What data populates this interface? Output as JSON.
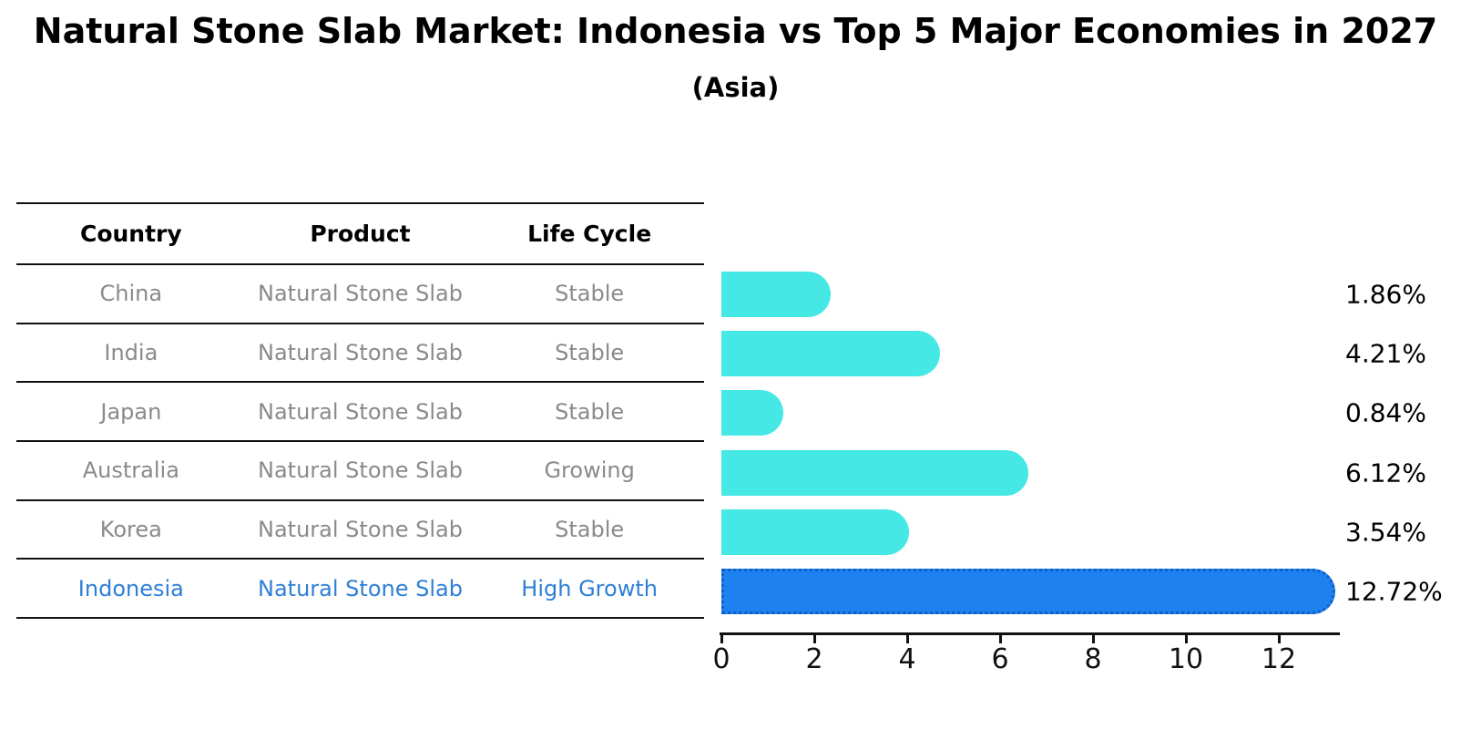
{
  "title": "Natural Stone Slab Market: Indonesia vs Top 5 Major Economies in 2027",
  "subtitle": "(Asia)",
  "table": {
    "headers": [
      "Country",
      "Product",
      "Life Cycle"
    ],
    "rows": [
      {
        "country": "China",
        "product": "Natural Stone Slab",
        "life_cycle": "Stable",
        "highlight": false
      },
      {
        "country": "India",
        "product": "Natural Stone Slab",
        "life_cycle": "Stable",
        "highlight": false
      },
      {
        "country": "Japan",
        "product": "Natural Stone Slab",
        "life_cycle": "Stable",
        "highlight": false
      },
      {
        "country": "Australia",
        "product": "Natural Stone Slab",
        "life_cycle": "Growing",
        "highlight": false
      },
      {
        "country": "Korea",
        "product": "Natural Stone Slab",
        "life_cycle": "Stable",
        "highlight": false
      },
      {
        "country": "Indonesia",
        "product": "Natural Stone Slab",
        "life_cycle": "High Growth",
        "highlight": true
      }
    ]
  },
  "chart_data": {
    "type": "bar",
    "orientation": "horizontal",
    "title": "Natural Stone Slab Market: Indonesia vs Top 5 Major Economies in 2027",
    "subtitle": "(Asia)",
    "categories": [
      "China",
      "India",
      "Japan",
      "Australia",
      "Korea",
      "Indonesia"
    ],
    "values": [
      1.86,
      4.21,
      0.84,
      6.12,
      3.54,
      12.72
    ],
    "value_labels": [
      "1.86%",
      "4.21%",
      "0.84%",
      "6.12%",
      "3.54%",
      "12.72%"
    ],
    "x_ticks": [
      0,
      2,
      4,
      6,
      8,
      10,
      12
    ],
    "xlim": [
      0,
      13.35
    ],
    "grid": false,
    "legend": false,
    "highlight_index": 5,
    "bar_color": "#45E8E4",
    "highlight_color": "#1E81F0",
    "highlight_border_color": "#0F5FC8",
    "row_text_color": "#8a8a8a",
    "highlight_text_color": "#2E7FD6"
  }
}
